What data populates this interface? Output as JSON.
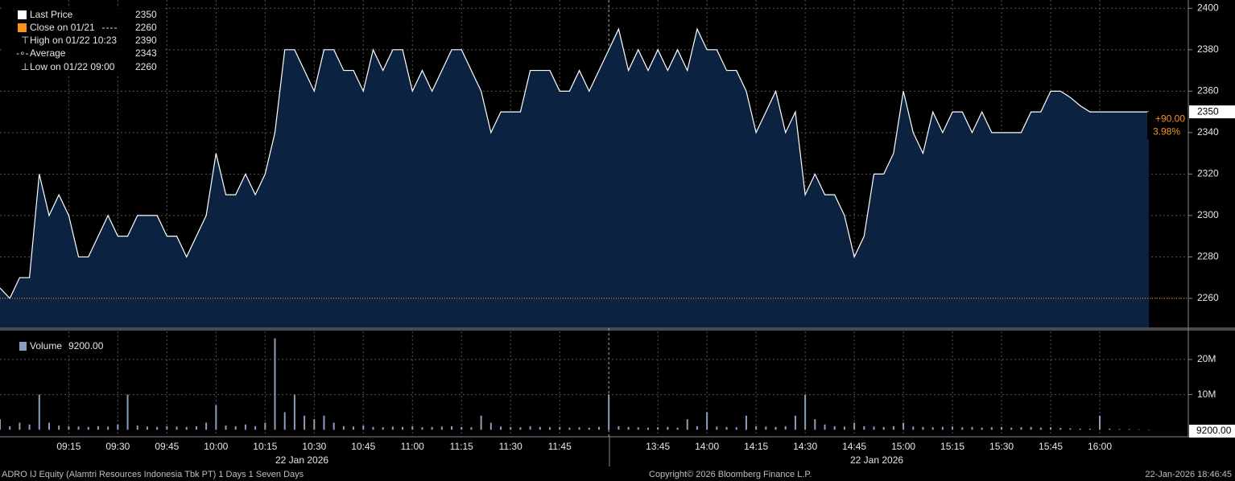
{
  "chart_data": [
    {
      "type": "area",
      "color": "#ffffff",
      "fill": "#0b2240",
      "close_color": "#f7941d",
      "legend": [
        {
          "label": "Last Price",
          "value": 2350
        },
        {
          "label": "Close on 01/21",
          "value": 2260
        },
        {
          "label": "High on 01/22 10:23",
          "value": 2390
        },
        {
          "label": "Average",
          "value": 2343
        },
        {
          "label": "Low on 01/22 09:00",
          "value": 2260
        }
      ],
      "annotations": [
        "+90.00",
        "3.98%"
      ],
      "ylim": [
        2246,
        2404
      ],
      "yticks": [
        2260,
        2280,
        2300,
        2320,
        2340,
        2360,
        2380,
        2400
      ],
      "grid": true,
      "values": [
        2265,
        2260,
        2270,
        2270,
        2320,
        2300,
        2310,
        2300,
        2280,
        2280,
        2290,
        2300,
        2290,
        2290,
        2300,
        2300,
        2300,
        2290,
        2290,
        2280,
        2290,
        2300,
        2330,
        2310,
        2310,
        2320,
        2310,
        2320,
        2340,
        2380,
        2380,
        2370,
        2360,
        2380,
        2380,
        2370,
        2370,
        2360,
        2380,
        2370,
        2380,
        2380,
        2360,
        2370,
        2360,
        2370,
        2380,
        2380,
        2370,
        2360,
        2340,
        2350,
        2350,
        2350,
        2370,
        2370,
        2370,
        2360,
        2360,
        2370,
        2360,
        2370,
        2380,
        2390,
        2370,
        2380,
        2370,
        2380,
        2370,
        2380,
        2370,
        2390,
        2380,
        2380,
        2370,
        2370,
        2360,
        2340,
        2350,
        2360,
        2340,
        2350,
        2310,
        2320,
        2310,
        2310,
        2300,
        2280,
        2290,
        2320,
        2320,
        2330,
        2360,
        2340,
        2330,
        2350,
        2340,
        2350,
        2350,
        2340,
        2350,
        2340,
        2340,
        2340,
        2340,
        2350,
        2350,
        2360,
        2360,
        2357,
        2353,
        2350,
        2350,
        2350,
        2350,
        2350,
        2350,
        2350
      ]
    },
    {
      "type": "bar",
      "color": "#8c9dc2",
      "legend_label": "Volume",
      "last_value_label": "9200.00",
      "ylim": [
        -2000000,
        28000000
      ],
      "yticks": [
        {
          "value": 10000000,
          "label": "10M"
        },
        {
          "value": 20000000,
          "label": "20M"
        }
      ],
      "grid": true,
      "values": [
        3000000,
        1000000,
        2000000,
        1500000,
        10000000,
        2000000,
        1200000,
        1000000,
        900000,
        800000,
        1000000,
        900000,
        1500000,
        10000000,
        1200000,
        900000,
        800000,
        1000000,
        900000,
        800000,
        1000000,
        2000000,
        7000000,
        1200000,
        1000000,
        1500000,
        1000000,
        2000000,
        26000000,
        5000000,
        10000000,
        4000000,
        3000000,
        4000000,
        2000000,
        1000000,
        900000,
        1200000,
        800000,
        700000,
        900000,
        800000,
        1000000,
        700000,
        800000,
        900000,
        1000000,
        800000,
        700000,
        4000000,
        2000000,
        900000,
        800000,
        700000,
        1000000,
        800000,
        700000,
        800000,
        600000,
        700000,
        600000,
        800000,
        10000000,
        1000000,
        800000,
        700000,
        600000,
        700000,
        800000,
        600000,
        3000000,
        1000000,
        5000000,
        900000,
        800000,
        700000,
        4000000,
        1000000,
        900000,
        800000,
        1000000,
        4000000,
        10000000,
        3000000,
        1500000,
        1000000,
        900000,
        2000000,
        1000000,
        900000,
        800000,
        1000000,
        2000000,
        900000,
        800000,
        700000,
        800000,
        900000,
        700000,
        800000,
        600000,
        700000,
        800000,
        600000,
        700000,
        800000,
        600000,
        700000,
        500000,
        400000,
        300000,
        300000,
        4000000,
        300000,
        200000,
        200000,
        100000,
        9200
      ]
    }
  ],
  "time_axis": {
    "categories": [
      null,
      null,
      null,
      null,
      null,
      null,
      null,
      "09:15",
      null,
      null,
      null,
      null,
      "09:30",
      null,
      null,
      null,
      null,
      "09:45",
      null,
      null,
      null,
      null,
      "10:00",
      null,
      null,
      null,
      null,
      "10:15",
      null,
      null,
      null,
      null,
      "10:30",
      null,
      null,
      null,
      null,
      "10:45",
      null,
      null,
      null,
      null,
      "11:00",
      null,
      null,
      null,
      null,
      "11:15",
      null,
      null,
      null,
      null,
      "11:30",
      null,
      null,
      null,
      null,
      "11:45",
      null,
      null,
      null,
      null,
      null,
      null,
      null,
      null,
      null,
      "13:45",
      null,
      null,
      null,
      null,
      "14:00",
      null,
      null,
      null,
      null,
      "14:15",
      null,
      null,
      null,
      null,
      "14:30",
      null,
      null,
      null,
      null,
      "14:45",
      null,
      null,
      null,
      null,
      "15:00",
      null,
      null,
      null,
      null,
      "15:15",
      null,
      null,
      null,
      null,
      "15:30",
      null,
      null,
      null,
      null,
      "15:45",
      null,
      null,
      null,
      null,
      "16:00",
      null,
      null,
      null,
      null,
      null
    ],
    "date_labels": [
      "22 Jan 2026",
      "22 Jan 2026"
    ]
  },
  "footer": {
    "left": "ADRO IJ Equity (Alamtri Resources Indonesia Tbk PT) 1 Days 1 Seven Days",
    "center": "Copyright© 2026 Bloomberg Finance L.P.",
    "right": "22-Jan-2026 18:46:45"
  }
}
